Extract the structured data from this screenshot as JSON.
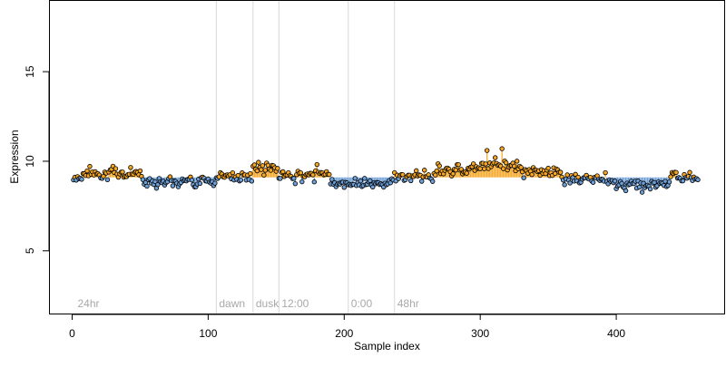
{
  "chart_data": {
    "type": "scatter",
    "title": "",
    "xlabel": "Sample index",
    "ylabel": "Expression",
    "xlim": [
      -17,
      480
    ],
    "ylim": [
      1.5,
      19.0
    ],
    "xticks": [
      0,
      100,
      200,
      300,
      400
    ],
    "yticks": [
      5,
      10,
      15
    ],
    "baseline": 9.1,
    "grid": false,
    "colors": {
      "above": "#f5a623",
      "below": "#6e9fd6",
      "point_edge": "#000000",
      "guide_line": "#d8d8d8",
      "annotation_text": "#a8a8a8"
    },
    "annotations": [
      {
        "label": "24hr",
        "x": 2,
        "line": false
      },
      {
        "label": "dawn",
        "x": 106,
        "line": true
      },
      {
        "label": "dusk",
        "x": 133,
        "line": true
      },
      {
        "label": "12:00",
        "x": 152,
        "line": true
      },
      {
        "label": "0:00",
        "x": 203,
        "line": true
      },
      {
        "label": "48hr",
        "x": 237,
        "line": true
      }
    ],
    "segments": [
      {
        "x0": 1,
        "x1": 8,
        "y": 9.1
      },
      {
        "x0": 8,
        "x1": 52,
        "y": 9.35
      },
      {
        "x0": 52,
        "x1": 106,
        "y": 8.9
      },
      {
        "x0": 106,
        "x1": 133,
        "y": 9.15
      },
      {
        "x0": 133,
        "x1": 152,
        "y": 9.6
      },
      {
        "x0": 152,
        "x1": 180,
        "y": 9.2
      },
      {
        "x0": 180,
        "x1": 190,
        "y": 9.45
      },
      {
        "x0": 190,
        "x1": 237,
        "y": 8.8
      },
      {
        "x0": 237,
        "x1": 268,
        "y": 9.15
      },
      {
        "x0": 268,
        "x1": 292,
        "y": 9.55
      },
      {
        "x0": 292,
        "x1": 330,
        "y": 9.75
      },
      {
        "x0": 330,
        "x1": 360,
        "y": 9.4
      },
      {
        "x0": 360,
        "x1": 398,
        "y": 9.0
      },
      {
        "x0": 398,
        "x1": 440,
        "y": 8.7
      },
      {
        "x0": 440,
        "x1": 460,
        "y": 9.1
      }
    ],
    "spikes": [
      {
        "x": 305,
        "y": 10.6
      },
      {
        "x": 316,
        "y": 10.7
      },
      {
        "x": 311,
        "y": 10.2
      }
    ],
    "series": [
      {
        "x_start": 1,
        "x_end": 460,
        "noise_sd": 0.22,
        "seed": 7
      }
    ]
  }
}
